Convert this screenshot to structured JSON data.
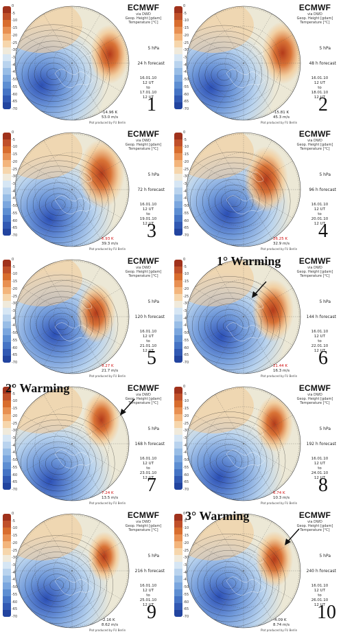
{
  "colorbar": {
    "labels": [
      "0",
      "-5",
      "-10",
      "-15",
      "-20",
      "-25",
      "-30",
      "-35",
      "-40",
      "-45",
      "-50",
      "-55",
      "-60",
      "-65",
      "-70"
    ]
  },
  "common": {
    "title": "ECMWF",
    "subtitle_1": "via DWD",
    "subtitle_2": "Geop. Height  [gdam]",
    "subtitle_3": "Temperature  [°C]",
    "pressure": "5 hPa",
    "produced": "Plot produced by FU Berlin"
  },
  "panels": [
    {
      "number": "1",
      "forecast": "24 h forecast",
      "init_date": "16.01.10",
      "init_time": "12 UT",
      "valid_date": "17.01.10",
      "valid_time": "12 UT",
      "tmax": "-14.96 K",
      "temp_alert": false,
      "wind": "53.0 m/s",
      "warming": ""
    },
    {
      "number": "2",
      "forecast": "48 h forecast",
      "init_date": "16.01.10",
      "init_time": "12 UT",
      "valid_date": "18.01.10",
      "valid_time": "12 UT",
      "tmax": "-15.81 K",
      "temp_alert": false,
      "wind": "45.3 m/s",
      "warming": ""
    },
    {
      "number": "3",
      "forecast": "72 h forecast",
      "init_date": "16.01.10",
      "init_time": "12 UT",
      "valid_date": "19.01.10",
      "valid_time": "12 UT",
      "tmax": "6.93 K",
      "temp_alert": true,
      "wind": "39.3 m/s",
      "warming": ""
    },
    {
      "number": "4",
      "forecast": "96 h forecast",
      "init_date": "16.01.10",
      "init_time": "12 UT",
      "valid_date": "20.01.10",
      "valid_time": "12 UT",
      "tmax": "26.25 K",
      "temp_alert": true,
      "wind": "32.9 m/s",
      "warming": ""
    },
    {
      "number": "5",
      "forecast": "120 h forecast",
      "init_date": "16.01.10",
      "init_time": "12 UT",
      "valid_date": "21.01.10",
      "valid_time": "12 UT",
      "tmax": "9.27 K",
      "temp_alert": true,
      "wind": "21.7 m/s",
      "warming": ""
    },
    {
      "number": "6",
      "forecast": "144 h forecast",
      "init_date": "16.01.10",
      "init_time": "12 UT",
      "valid_date": "22.01.10",
      "valid_time": "12 UT",
      "tmax": "21.44 K",
      "temp_alert": true,
      "wind": "16.3 m/s",
      "warming": "1° Warming"
    },
    {
      "number": "7",
      "forecast": "168 h forecast",
      "init_date": "16.01.10",
      "init_time": "12 UT",
      "valid_date": "23.01.10",
      "valid_time": "12 UT",
      "tmax": "7.24 K",
      "temp_alert": true,
      "wind": "13.5 m/s",
      "warming": "2° Warming"
    },
    {
      "number": "8",
      "forecast": "192 h forecast",
      "init_date": "16.01.10",
      "init_time": "12 UT",
      "valid_date": "24.01.10",
      "valid_time": "12 UT",
      "tmax": "6.74 K",
      "temp_alert": true,
      "wind": "10.3 m/s",
      "warming": ""
    },
    {
      "number": "9",
      "forecast": "216 h forecast",
      "init_date": "16.01.10",
      "init_time": "12 UT",
      "valid_date": "25.01.10",
      "valid_time": "12 UT",
      "tmax": "-2.16 K",
      "temp_alert": false,
      "wind": "8.62 m/s",
      "warming": ""
    },
    {
      "number": "10",
      "forecast": "240 h forecast",
      "init_date": "16.01.10",
      "init_time": "12 UT",
      "valid_date": "26.01.10",
      "valid_time": "12 UT",
      "tmax": "-4.09 K",
      "temp_alert": false,
      "wind": "8.74 m/s",
      "warming": "3° Warming"
    }
  ],
  "colors": {
    "cold_deep": "#2b4fb5",
    "cold": "#6f98d9",
    "cool": "#b9d3ee",
    "neutral": "#ece8d6",
    "warm": "#f3c995",
    "hot": "#d86d2e",
    "hot_deep": "#b33a1a",
    "alert_red": "#d01010"
  }
}
